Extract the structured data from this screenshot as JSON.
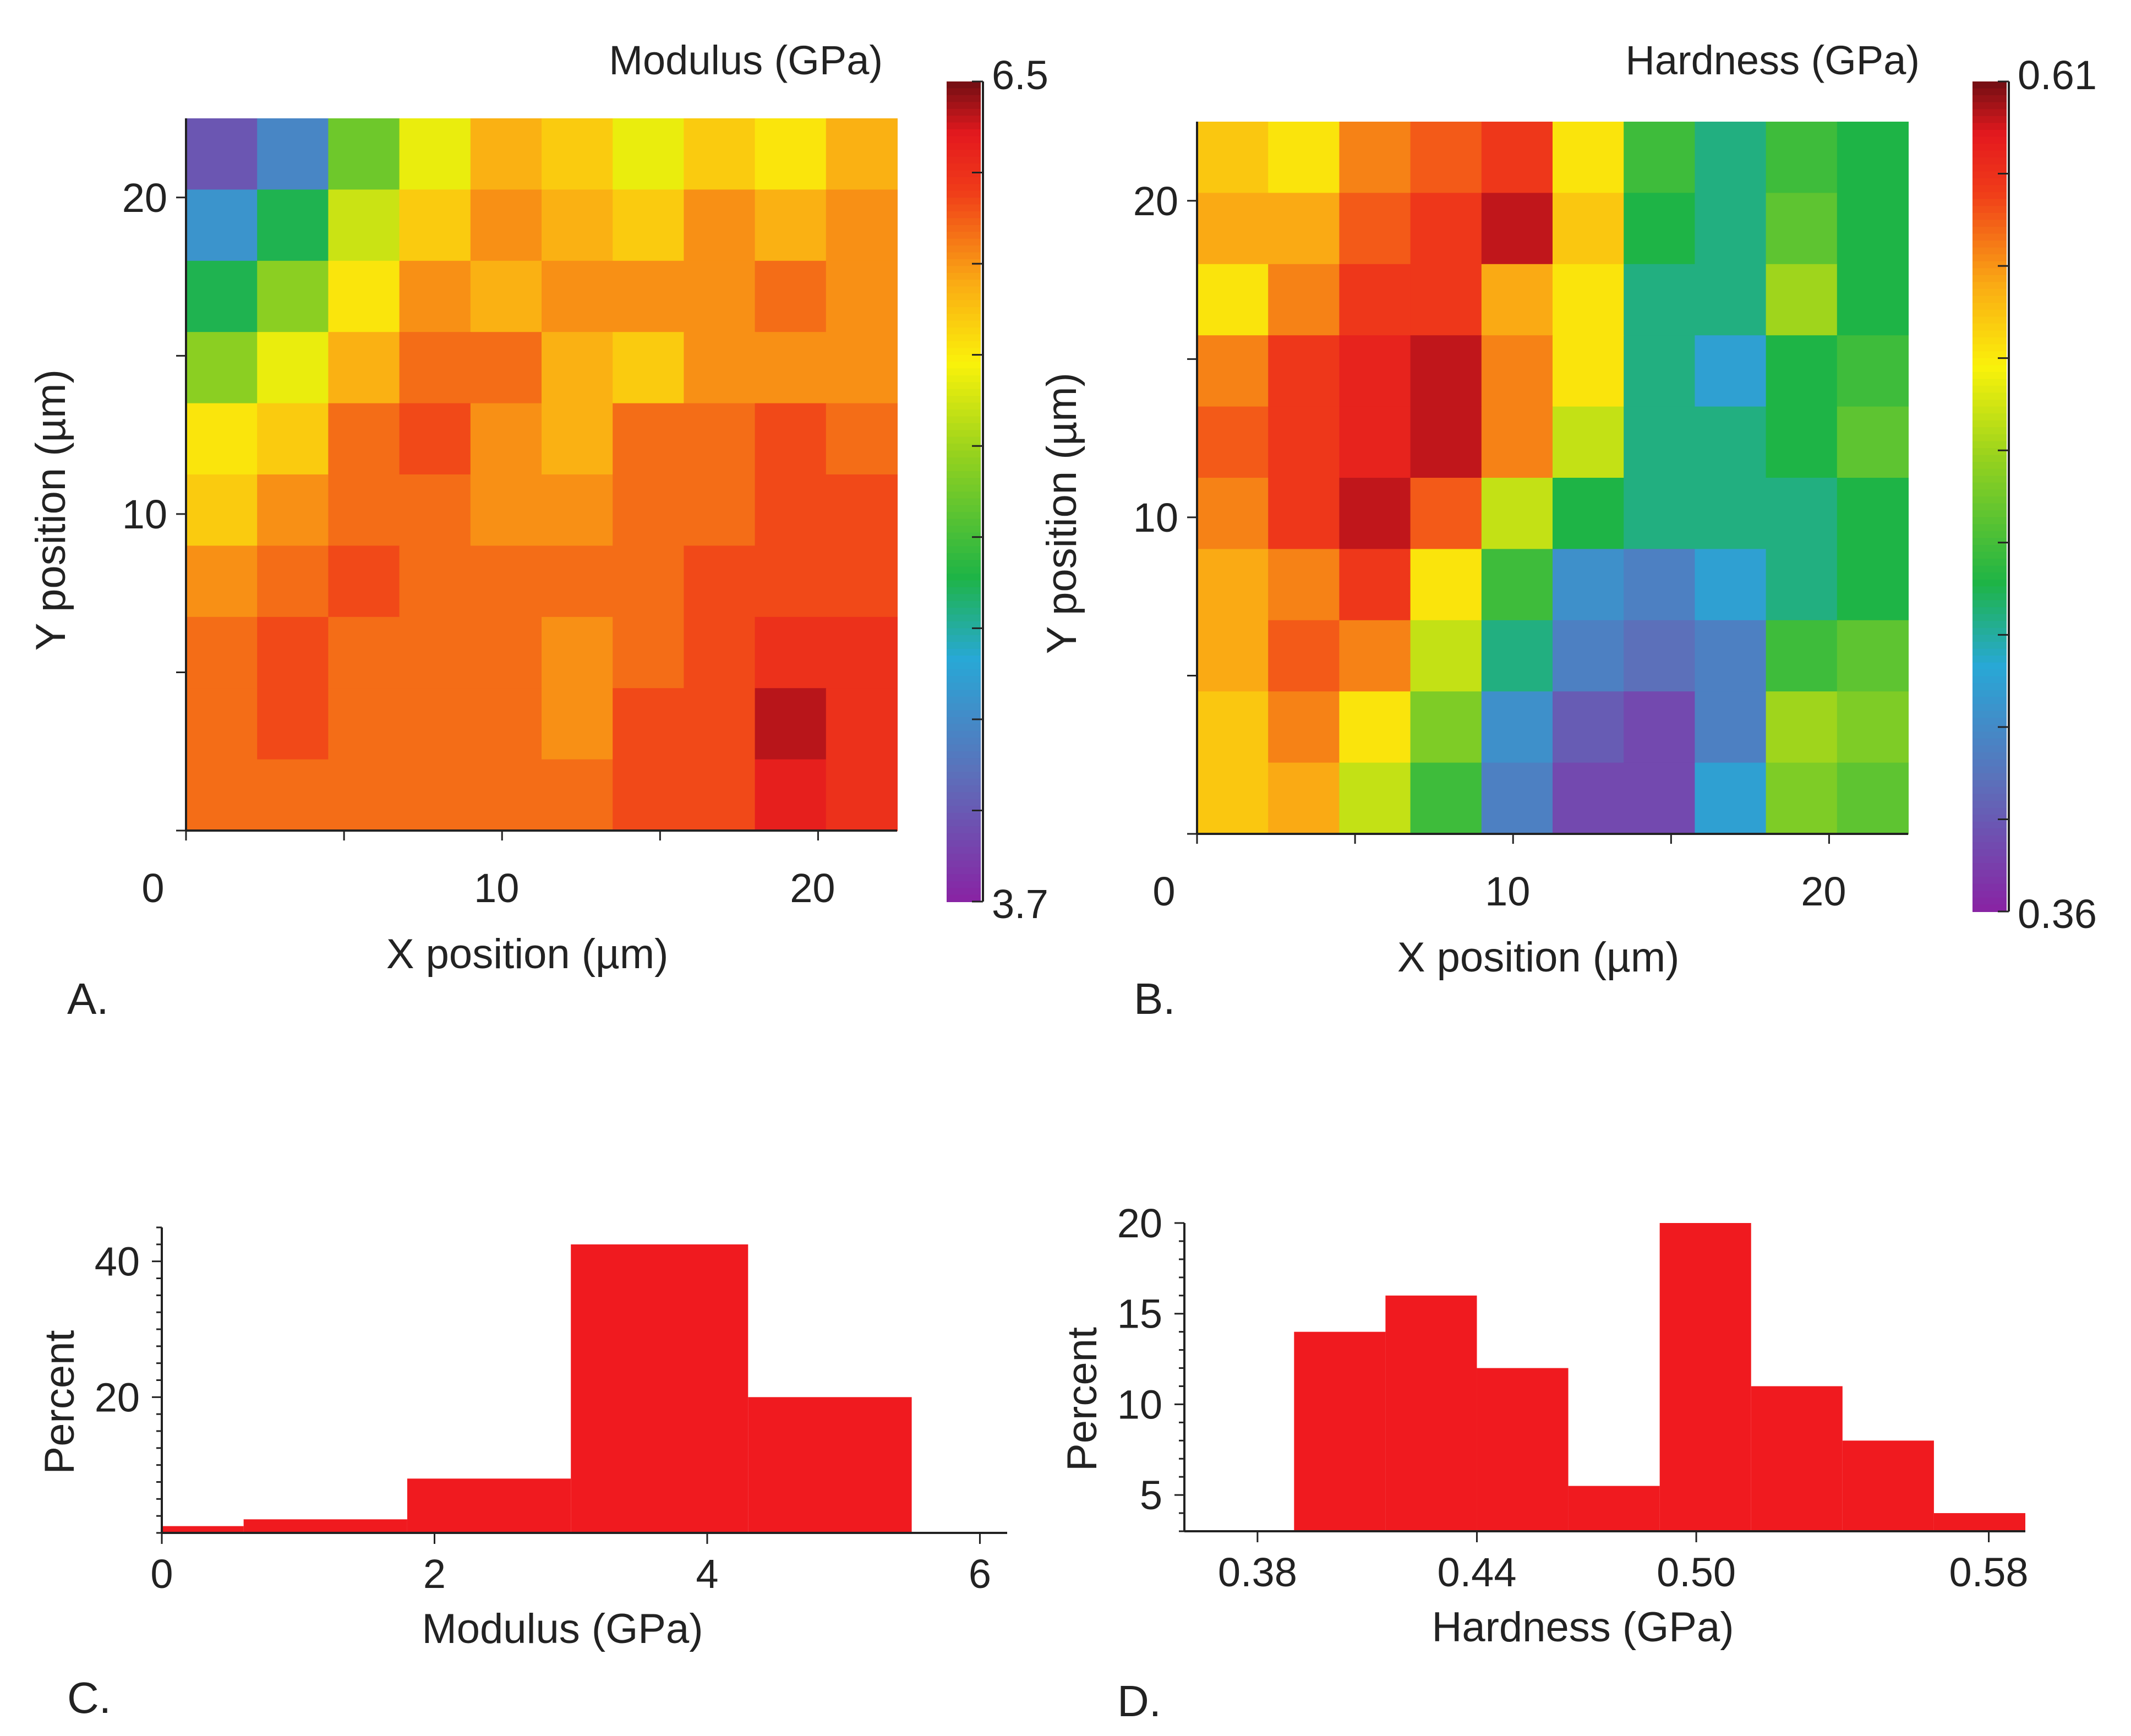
{
  "chart_data": [
    {
      "panel": "A.",
      "type": "heatmap",
      "title": "Modulus (GPa)",
      "xlabel": "X position (µm)",
      "ylabel": "Y position (µm)",
      "xlim": [
        0,
        22.5
      ],
      "ylim": [
        0,
        22.5
      ],
      "xticks": [
        0,
        10,
        20
      ],
      "yticks": [
        10,
        20
      ],
      "colorbar": {
        "min": 3.7,
        "max": 6.5,
        "min_label": "3.7",
        "max_label": "6.5"
      },
      "grid_x": [
        0,
        2.5,
        5,
        7.5,
        10,
        12.5,
        15,
        17.5,
        20,
        22.5
      ],
      "grid_y": [
        22.5,
        20,
        17.5,
        15,
        12.5,
        10,
        7.5,
        5,
        2.5,
        0
      ],
      "z": [
        [
          4.0,
          4.3,
          5.1,
          5.5,
          5.8,
          5.7,
          5.5,
          5.7,
          5.6,
          5.8
        ],
        [
          4.4,
          4.8,
          5.4,
          5.7,
          5.9,
          5.8,
          5.7,
          5.9,
          5.8,
          5.9
        ],
        [
          4.8,
          5.2,
          5.6,
          5.9,
          5.8,
          5.9,
          5.9,
          5.9,
          6.0,
          5.9
        ],
        [
          5.2,
          5.5,
          5.8,
          6.0,
          6.0,
          5.8,
          5.7,
          5.9,
          5.9,
          5.9
        ],
        [
          5.6,
          5.7,
          6.0,
          6.1,
          5.9,
          5.8,
          6.0,
          6.0,
          6.1,
          6.0
        ],
        [
          5.7,
          5.9,
          6.0,
          6.0,
          5.9,
          5.9,
          6.0,
          6.0,
          6.1,
          6.1
        ],
        [
          5.9,
          6.0,
          6.1,
          6.0,
          6.0,
          6.0,
          6.0,
          6.1,
          6.1,
          6.1
        ],
        [
          6.0,
          6.1,
          6.0,
          6.0,
          6.0,
          5.9,
          6.0,
          6.1,
          6.2,
          6.2
        ],
        [
          6.0,
          6.1,
          6.0,
          6.0,
          6.0,
          5.9,
          6.1,
          6.1,
          6.4,
          6.2
        ],
        [
          6.0,
          6.0,
          6.0,
          6.0,
          6.0,
          6.0,
          6.1,
          6.1,
          6.3,
          6.2
        ]
      ]
    },
    {
      "panel": "B.",
      "type": "heatmap",
      "title": "Hardness (GPa)",
      "xlabel": "X position (µm)",
      "ylabel": "Y position (µm)",
      "xlim": [
        0,
        22.5
      ],
      "ylim": [
        0,
        22.5
      ],
      "xticks": [
        0,
        10,
        20
      ],
      "yticks": [
        10,
        20
      ],
      "colorbar": {
        "min": 0.36,
        "max": 0.61,
        "min_label": "0.36",
        "max_label": "0.61"
      },
      "grid_x": [
        0,
        2.5,
        5,
        7.5,
        10,
        12.5,
        15,
        17.5,
        20,
        22.5
      ],
      "grid_y": [
        22.5,
        20,
        17.5,
        15,
        12.5,
        10,
        7.5,
        5,
        2.5,
        0
      ],
      "z": [
        [
          0.54,
          0.53,
          0.56,
          0.57,
          0.58,
          0.53,
          0.47,
          0.45,
          0.47,
          0.46
        ],
        [
          0.55,
          0.55,
          0.57,
          0.58,
          0.6,
          0.54,
          0.46,
          0.45,
          0.48,
          0.46
        ],
        [
          0.53,
          0.56,
          0.58,
          0.58,
          0.55,
          0.53,
          0.45,
          0.45,
          0.5,
          0.46
        ],
        [
          0.56,
          0.58,
          0.59,
          0.6,
          0.56,
          0.53,
          0.45,
          0.43,
          0.46,
          0.47
        ],
        [
          0.57,
          0.58,
          0.59,
          0.6,
          0.56,
          0.51,
          0.45,
          0.45,
          0.46,
          0.48
        ],
        [
          0.56,
          0.58,
          0.6,
          0.57,
          0.51,
          0.46,
          0.45,
          0.45,
          0.45,
          0.46
        ],
        [
          0.55,
          0.56,
          0.58,
          0.53,
          0.47,
          0.42,
          0.41,
          0.43,
          0.45,
          0.46
        ],
        [
          0.55,
          0.57,
          0.56,
          0.51,
          0.45,
          0.41,
          0.4,
          0.41,
          0.47,
          0.48
        ],
        [
          0.54,
          0.56,
          0.53,
          0.49,
          0.42,
          0.39,
          0.38,
          0.41,
          0.5,
          0.49
        ],
        [
          0.54,
          0.55,
          0.51,
          0.47,
          0.41,
          0.38,
          0.38,
          0.43,
          0.49,
          0.48
        ]
      ]
    },
    {
      "panel": "C.",
      "type": "bar",
      "subtype": "histogram",
      "xlabel": "Modulus (GPa)",
      "ylabel": "Percent",
      "xlim": [
        0,
        6.2
      ],
      "ylim": [
        0,
        45
      ],
      "xticks": [
        0,
        2,
        4,
        6
      ],
      "yticks": [
        20,
        40
      ],
      "bins": [
        {
          "from": 0.0,
          "to": 0.6,
          "value": 1.0
        },
        {
          "from": 0.6,
          "to": 1.8,
          "value": 2.0
        },
        {
          "from": 1.8,
          "to": 3.0,
          "value": 8.0
        },
        {
          "from": 3.0,
          "to": 4.3,
          "value": 42.5
        },
        {
          "from": 4.3,
          "to": 5.5,
          "value": 20.0
        }
      ],
      "bar_color": "#f01a1f"
    },
    {
      "panel": "D.",
      "type": "bar",
      "subtype": "histogram",
      "xlabel": "Hardness (GPa)",
      "ylabel": "Percent",
      "xlim": [
        0.36,
        0.59
      ],
      "ylim": [
        3,
        20
      ],
      "xticks": [
        0.38,
        0.44,
        0.5,
        0.58
      ],
      "xtick_labels": [
        "0.38",
        "0.44",
        "0.50",
        "0.58"
      ],
      "yticks": [
        5,
        10,
        15,
        20
      ],
      "bins": [
        {
          "from": 0.39,
          "to": 0.415,
          "value": 14
        },
        {
          "from": 0.415,
          "to": 0.44,
          "value": 16
        },
        {
          "from": 0.44,
          "to": 0.465,
          "value": 12
        },
        {
          "from": 0.465,
          "to": 0.49,
          "value": 5.5
        },
        {
          "from": 0.49,
          "to": 0.515,
          "value": 20
        },
        {
          "from": 0.515,
          "to": 0.54,
          "value": 11
        },
        {
          "from": 0.54,
          "to": 0.565,
          "value": 8
        },
        {
          "from": 0.565,
          "to": 0.59,
          "value": 4
        }
      ],
      "bar_color": "#f01a1f"
    }
  ]
}
